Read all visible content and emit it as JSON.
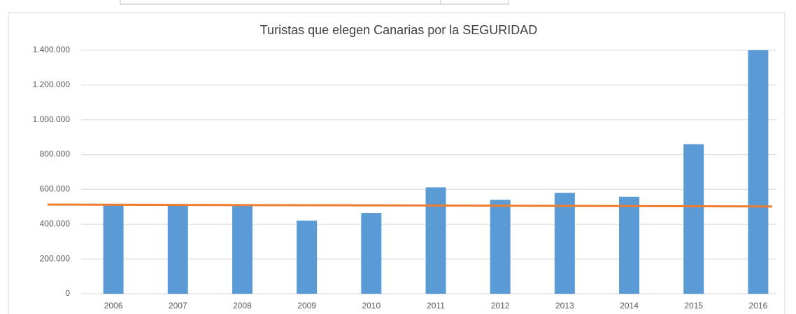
{
  "chart_data": {
    "type": "bar",
    "title": "Turistas que elegen Canarias por la SEGURIDAD",
    "categories": [
      "2006",
      "2007",
      "2008",
      "2009",
      "2010",
      "2011",
      "2012",
      "2013",
      "2014",
      "2015",
      "2016"
    ],
    "values": [
      510000,
      510000,
      505000,
      420000,
      465000,
      612000,
      540000,
      580000,
      558000,
      860000,
      1400000
    ],
    "color": "#5b9bd5",
    "trendline": {
      "color": "#ed7d31",
      "values": [
        513000,
        502000
      ]
    },
    "ylim": [
      0,
      1400000
    ],
    "yticks": [
      0,
      {
        "value": 200000,
        "label": "200.000"
      },
      {
        "value": 400000,
        "label": "400.000"
      },
      {
        "value": 600000,
        "label": "600.000"
      },
      {
        "value": 800000,
        "label": "800.000"
      },
      {
        "value": 1000000,
        "label": "1.000.000"
      },
      {
        "value": 1200000,
        "label": "1.200.000"
      },
      {
        "value": 1400000,
        "label": "1.400.000"
      }
    ],
    "grid": true
  }
}
